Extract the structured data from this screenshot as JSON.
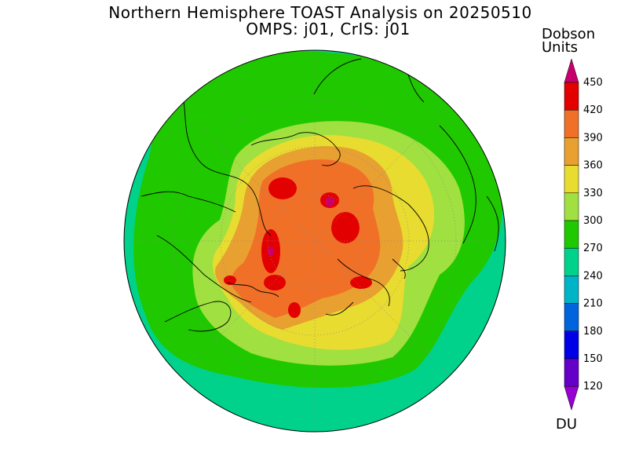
{
  "title_line1": "Northern Hemisphere TOAST Analysis on 20250510",
  "title_line2": "OMPS: j01, CrIS: j01",
  "units_line1": "Dobson",
  "units_line2": "Units",
  "units_abbrev": "DU",
  "colorbar": {
    "levels": [
      "450",
      "420",
      "390",
      "360",
      "330",
      "300",
      "270",
      "240",
      "210",
      "180",
      "150",
      "120"
    ],
    "colors_top_to_bottom": [
      "#c8006e",
      "#e30000",
      "#f07028",
      "#e8a030",
      "#e8dc30",
      "#a0e040",
      "#20c800",
      "#00d28c",
      "#00b4c8",
      "#0064dc",
      "#0000e6",
      "#6400c8",
      "#9600d2"
    ]
  },
  "map_colors": {
    "ocean_ring": "#00d28c",
    "band_270": "#20c800",
    "band_300": "#a0e040",
    "band_330": "#e8dc30",
    "band_360": "#e8a030",
    "band_390": "#f07028",
    "band_420": "#e30000",
    "band_450": "#c8006e"
  }
}
